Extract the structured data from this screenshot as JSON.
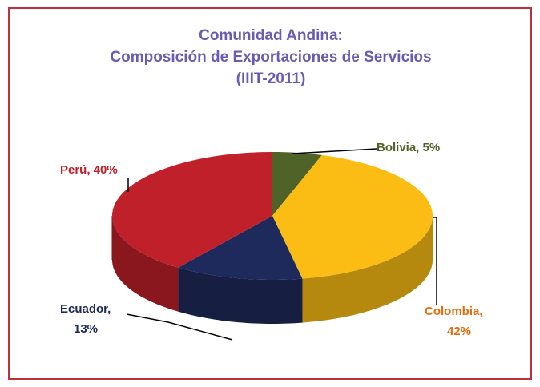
{
  "chart_data": {
    "type": "pie3d",
    "title": [
      "Comunidad Andina:",
      "Composición de Exportaciones de Servicios",
      "(IIIT-2011)"
    ],
    "values": [
      5,
      42,
      13,
      40
    ],
    "value_labels": [
      [
        "Bolivia, 5%"
      ],
      [
        "Colombia,",
        "42%"
      ],
      [
        "Ecuador,",
        "13%"
      ],
      [
        "Perú, 40%"
      ]
    ],
    "colors": [
      "#4f6228",
      "#fbbd13",
      "#1f2a5c",
      "#c0202a"
    ],
    "label_colors": [
      "#4f6228",
      "#e46c0a",
      "#1f2a5c",
      "#c0202a"
    ]
  }
}
